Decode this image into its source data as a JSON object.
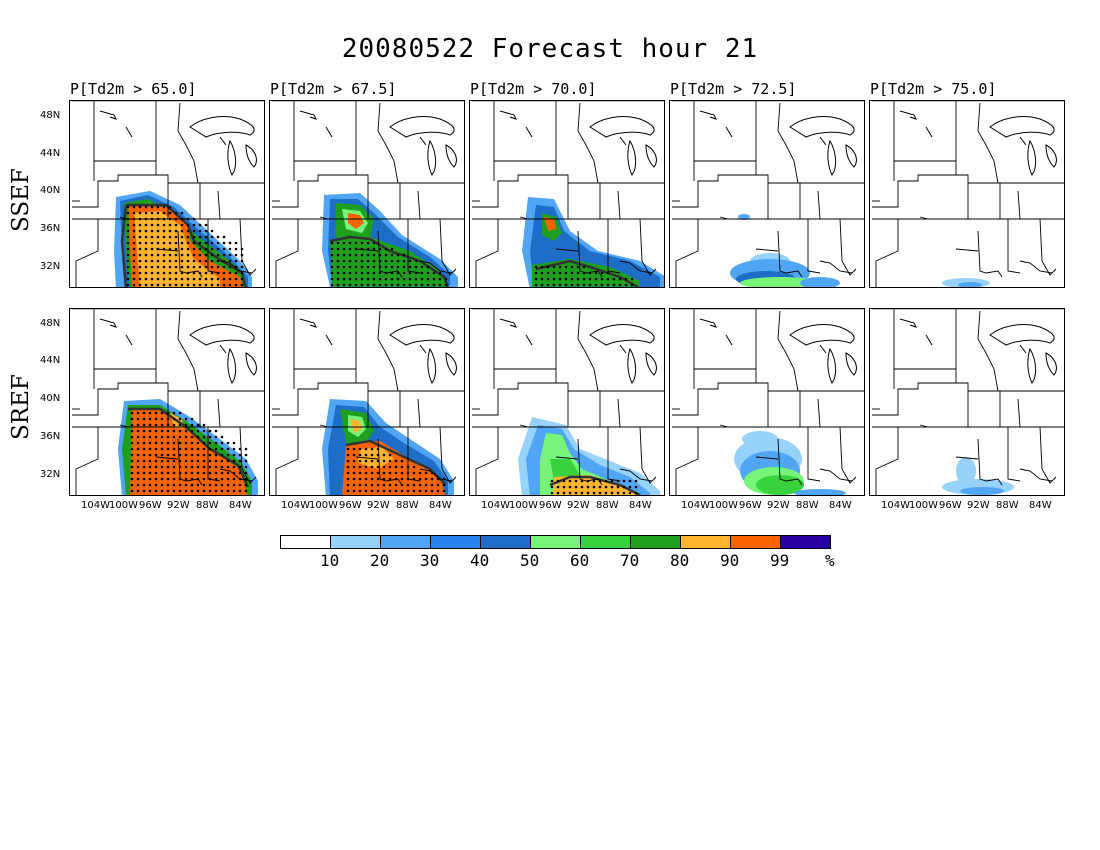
{
  "title": "20080522 Forecast hour 21",
  "rows": [
    "SSEF",
    "SREF"
  ],
  "columns": [
    "P[Td2m > 65.0]",
    "P[Td2m > 67.5]",
    "P[Td2m > 70.0]",
    "P[Td2m > 72.5]",
    "P[Td2m > 75.0]"
  ],
  "lat_labels": [
    "48N",
    "44N",
    "40N",
    "36N",
    "32N"
  ],
  "lon_labels": [
    "104W",
    "100W",
    "96W",
    "92W",
    "88W",
    "84W"
  ],
  "colorbar": {
    "labels": [
      "10",
      "20",
      "30",
      "40",
      "50",
      "60",
      "70",
      "80",
      "90",
      "99",
      "%"
    ],
    "colors": [
      "#ffffff",
      "#96d2fa",
      "#50a5f5",
      "#2882f0",
      "#1e6ec8",
      "#78f578",
      "#37d23c",
      "#1ea01e",
      "#ffb432",
      "#fa6400",
      "#2800a0"
    ]
  }
}
